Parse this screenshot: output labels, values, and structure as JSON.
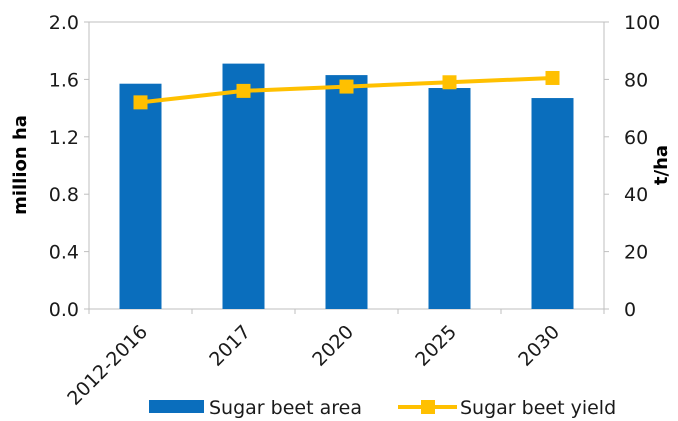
{
  "chart_data": {
    "type": "bar",
    "categories": [
      "2012-2016",
      "2017",
      "2020",
      "2025",
      "2030"
    ],
    "series": [
      {
        "name": "Sugar beet area",
        "type": "bar",
        "axis": "left",
        "values": [
          1.57,
          1.71,
          1.63,
          1.54,
          1.47
        ],
        "color": "#0a6ebd"
      },
      {
        "name": "Sugar beet yield",
        "type": "line",
        "axis": "right",
        "values": [
          72,
          76,
          77.5,
          79,
          80.5
        ],
        "color": "#ffc000"
      }
    ],
    "ylabel": "million ha",
    "y2label": "t/ha",
    "ylim": [
      0,
      2.0
    ],
    "y2lim": [
      0,
      100
    ],
    "yticks": [
      "0.0",
      "0.4",
      "0.8",
      "1.2",
      "1.6",
      "2.0"
    ],
    "y2ticks": [
      "0",
      "20",
      "40",
      "60",
      "80",
      "100"
    ],
    "grid": false,
    "legend": "bottom"
  }
}
